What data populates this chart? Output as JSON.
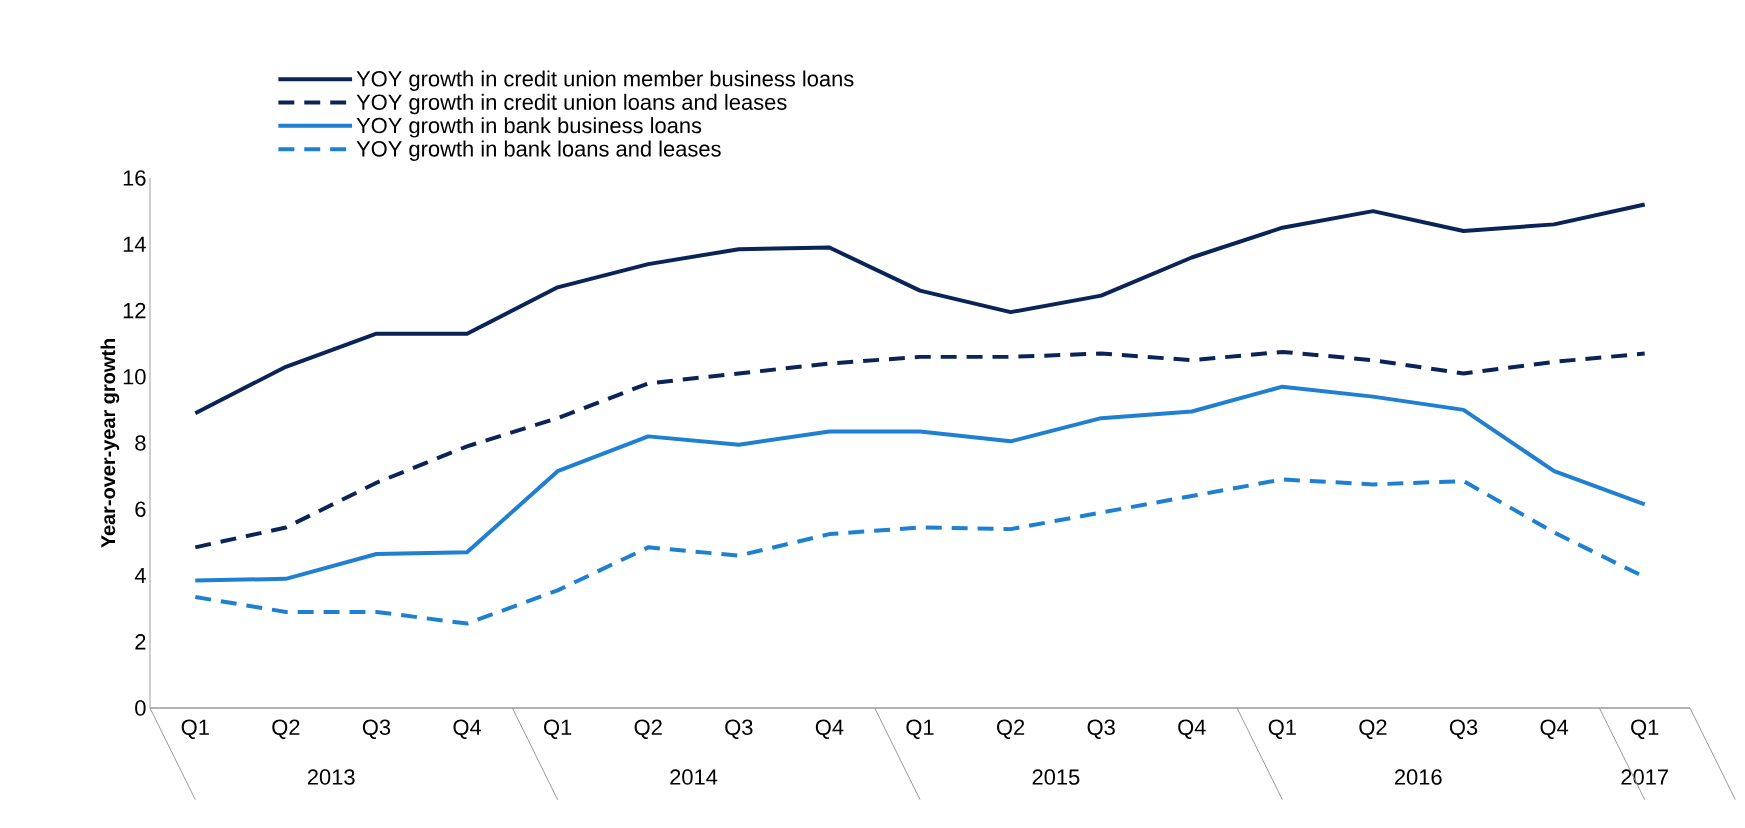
{
  "chart_data": {
    "type": "line",
    "ylabel": "Year-over-year growth",
    "categories": [
      "Q1",
      "Q2",
      "Q3",
      "Q4",
      "Q1",
      "Q2",
      "Q3",
      "Q4",
      "Q1",
      "Q2",
      "Q3",
      "Q4",
      "Q1",
      "Q2",
      "Q3",
      "Q4",
      "Q1"
    ],
    "annotations": [
      "2013",
      "2014",
      "2015",
      "2016",
      "2017"
    ],
    "series": [
      {
        "name": "YOY growth in credit union member business loans",
        "color": "#0b2457",
        "line_style": "solid",
        "values": [
          8.9,
          10.3,
          11.3,
          11.3,
          12.7,
          13.4,
          13.85,
          13.9,
          12.6,
          11.95,
          12.45,
          13.6,
          14.5,
          15.0,
          14.4,
          14.6,
          15.2
        ]
      },
      {
        "name": "YOY growth in credit union loans and leases",
        "color": "#0b2457",
        "line_style": "dashed",
        "values": [
          4.85,
          5.45,
          6.8,
          7.9,
          8.75,
          9.8,
          10.1,
          10.4,
          10.6,
          10.6,
          10.7,
          10.5,
          10.75,
          10.5,
          10.1,
          10.45,
          10.7
        ]
      },
      {
        "name": "YOY growth in bank business loans",
        "color": "#1f7fd0",
        "line_style": "solid",
        "values": [
          3.85,
          3.9,
          4.65,
          4.7,
          7.15,
          8.2,
          7.95,
          8.35,
          8.35,
          8.05,
          8.75,
          8.95,
          9.7,
          9.4,
          9.0,
          7.15,
          6.15
        ]
      },
      {
        "name": "YOY growth in bank loans and leases",
        "color": "#1f7fd0",
        "line_style": "dashed",
        "values": [
          3.35,
          2.9,
          2.9,
          2.55,
          3.55,
          4.85,
          4.6,
          5.25,
          5.45,
          5.4,
          5.9,
          6.4,
          6.9,
          6.75,
          6.85,
          5.3,
          3.95
        ]
      }
    ],
    "ylim": [
      0,
      16
    ],
    "yticks": [
      0,
      2,
      4,
      6,
      8,
      10,
      12,
      14,
      16
    ],
    "grid": false,
    "marker": "none",
    "legend": "top left"
  }
}
